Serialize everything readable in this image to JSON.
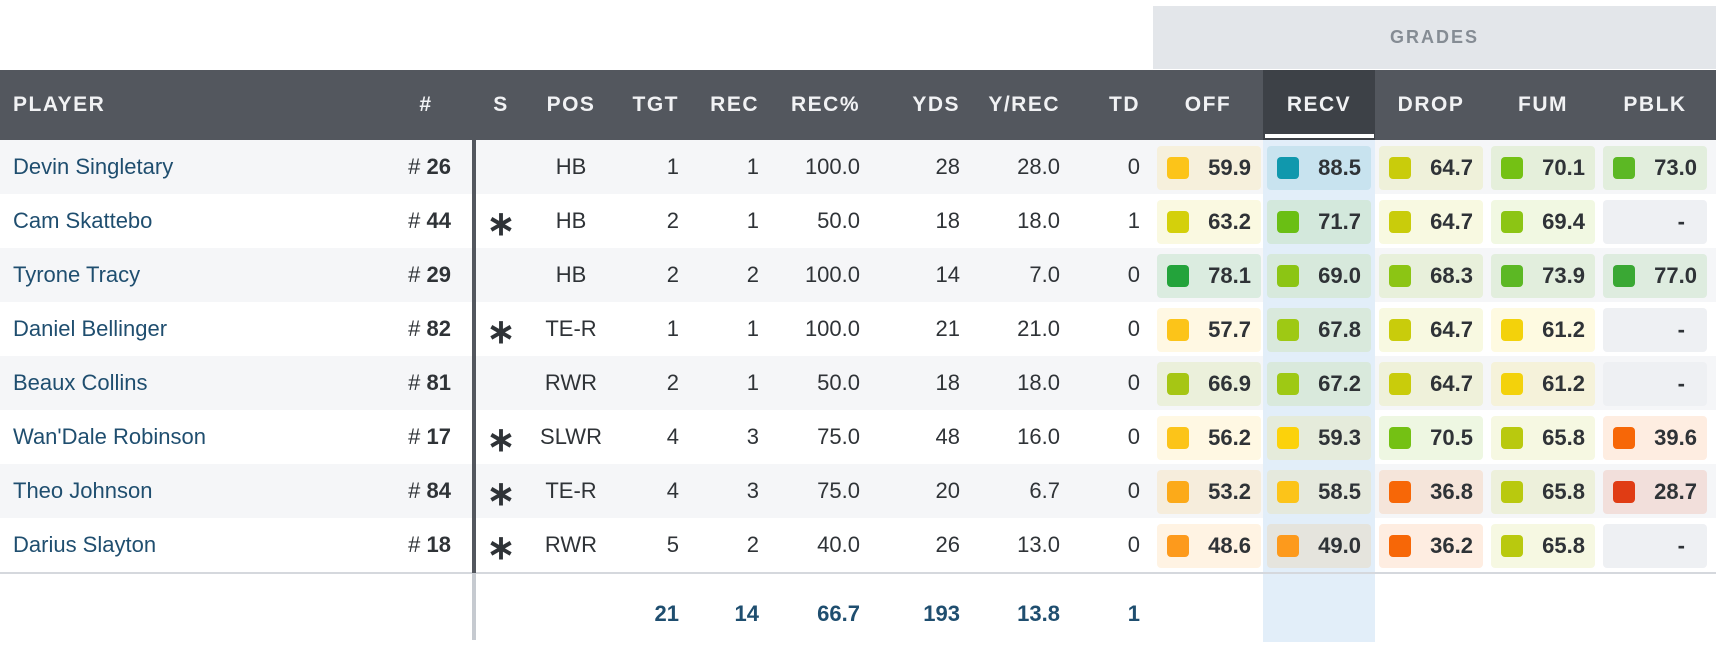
{
  "grades_header": "GRADES",
  "columns": {
    "player": "PLAYER",
    "num": "#",
    "s": "S",
    "pos": "POS",
    "tgt": "TGT",
    "rec": "REC",
    "rec_pct": "REC%",
    "yds": "YDS",
    "y_rec": "Y/REC",
    "td": "TD",
    "off": "OFF",
    "recv": "RECV",
    "drop": "DROP",
    "fum": "FUM",
    "pblk": "PBLK"
  },
  "selected_grade_column": "RECV",
  "number_prefix": "#",
  "starter_marker": "∗",
  "rows": [
    {
      "player": "Devin Singletary",
      "num": "26",
      "s": "",
      "pos": "HB",
      "tgt": "1",
      "rec": "1",
      "rec_pct": "100.0",
      "yds": "28",
      "y_rec": "28.0",
      "td": "0",
      "grades": {
        "off": "59.9",
        "recv": "88.5",
        "drop": "64.7",
        "fum": "70.1",
        "pblk": "73.0"
      },
      "colors": {
        "off": "#fcc419",
        "recv": "#1098ad",
        "drop": "#c9cc0b",
        "fum": "#74c114",
        "pblk": "#5cb824"
      }
    },
    {
      "player": "Cam Skattebo",
      "num": "44",
      "s": "∗",
      "pos": "HB",
      "tgt": "2",
      "rec": "1",
      "rec_pct": "50.0",
      "yds": "18",
      "y_rec": "18.0",
      "td": "1",
      "grades": {
        "off": "63.2",
        "recv": "71.7",
        "drop": "64.7",
        "fum": "69.4",
        "pblk": "-"
      },
      "colors": {
        "off": "#d4d00b",
        "recv": "#6abf14",
        "drop": "#c9cc0b",
        "fum": "#8cc514",
        "pblk": ""
      }
    },
    {
      "player": "Tyrone Tracy",
      "num": "29",
      "s": "",
      "pos": "HB",
      "tgt": "2",
      "rec": "2",
      "rec_pct": "100.0",
      "yds": "14",
      "y_rec": "7.0",
      "td": "0",
      "grades": {
        "off": "78.1",
        "recv": "69.0",
        "drop": "68.3",
        "fum": "73.9",
        "pblk": "77.0"
      },
      "colors": {
        "off": "#23a33b",
        "recv": "#8cc514",
        "drop": "#8cc514",
        "fum": "#5cb824",
        "pblk": "#3aa834"
      }
    },
    {
      "player": "Daniel Bellinger",
      "num": "82",
      "s": "∗",
      "pos": "TE-R",
      "tgt": "1",
      "rec": "1",
      "rec_pct": "100.0",
      "yds": "21",
      "y_rec": "21.0",
      "td": "0",
      "grades": {
        "off": "57.7",
        "recv": "67.8",
        "drop": "64.7",
        "fum": "61.2",
        "pblk": "-"
      },
      "colors": {
        "off": "#fcc419",
        "recv": "#9ec914",
        "drop": "#c9cc0b",
        "fum": "#f3d20b",
        "pblk": ""
      }
    },
    {
      "player": "Beaux Collins",
      "num": "81",
      "s": "",
      "pos": "RWR",
      "tgt": "2",
      "rec": "1",
      "rec_pct": "50.0",
      "yds": "18",
      "y_rec": "18.0",
      "td": "0",
      "grades": {
        "off": "66.9",
        "recv": "67.2",
        "drop": "64.7",
        "fum": "61.2",
        "pblk": "-"
      },
      "colors": {
        "off": "#a6c614",
        "recv": "#9ec914",
        "drop": "#c9cc0b",
        "fum": "#f3d20b",
        "pblk": ""
      }
    },
    {
      "player": "Wan'Dale Robinson",
      "num": "17",
      "s": "∗",
      "pos": "SLWR",
      "tgt": "4",
      "rec": "3",
      "rec_pct": "75.0",
      "yds": "48",
      "y_rec": "16.0",
      "td": "0",
      "grades": {
        "off": "56.2",
        "recv": "59.3",
        "drop": "70.5",
        "fum": "65.8",
        "pblk": "39.6"
      },
      "colors": {
        "off": "#fcc419",
        "recv": "#fcd20b",
        "drop": "#74c114",
        "fum": "#b9c90e",
        "pblk": "#f76707"
      }
    },
    {
      "player": "Theo Johnson",
      "num": "84",
      "s": "∗",
      "pos": "TE-R",
      "tgt": "4",
      "rec": "3",
      "rec_pct": "75.0",
      "yds": "20",
      "y_rec": "6.7",
      "td": "0",
      "grades": {
        "off": "53.2",
        "recv": "58.5",
        "drop": "36.8",
        "fum": "65.8",
        "pblk": "28.7"
      },
      "colors": {
        "off": "#fcaa19",
        "recv": "#fcc419",
        "drop": "#f76707",
        "fum": "#b9c90e",
        "pblk": "#e03c14"
      }
    },
    {
      "player": "Darius Slayton",
      "num": "18",
      "s": "∗",
      "pos": "RWR",
      "tgt": "5",
      "rec": "2",
      "rec_pct": "40.0",
      "yds": "26",
      "y_rec": "13.0",
      "td": "0",
      "grades": {
        "off": "48.6",
        "recv": "49.0",
        "drop": "36.2",
        "fum": "65.8",
        "pblk": "-"
      },
      "colors": {
        "off": "#fd9a1c",
        "recv": "#fd9a1c",
        "drop": "#f76707",
        "fum": "#b9c90e",
        "pblk": ""
      }
    }
  ],
  "totals": {
    "tgt": "21",
    "rec": "14",
    "rec_pct": "66.7",
    "yds": "193",
    "y_rec": "13.8",
    "td": "1"
  }
}
